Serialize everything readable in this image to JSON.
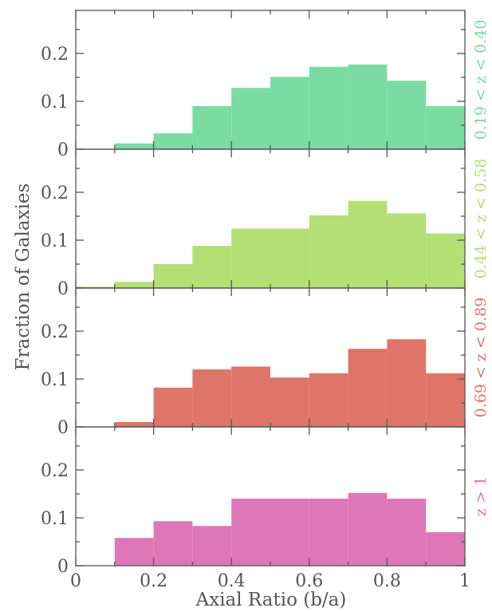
{
  "chart_data": {
    "type": "bar",
    "layout": "four vertically stacked histogram panels sharing the x axis",
    "xlabel": "Axial Ratio (b/a)",
    "ylabel": "Fraction of Galaxies",
    "xlim": [
      0,
      1
    ],
    "ylim": [
      0,
      0.29
    ],
    "x_ticks": [
      "0",
      "0.2",
      "0.4",
      "0.6",
      "0.8",
      "1"
    ],
    "y_ticks": [
      "0",
      "0.1",
      "0.2"
    ],
    "bin_edges": [
      0.0,
      0.1,
      0.2,
      0.3,
      0.4,
      0.5,
      0.6,
      0.7,
      0.8,
      0.9,
      1.0
    ],
    "grid": false,
    "panels": [
      {
        "label": "0.19 < z < 0.40",
        "color": "#7adba3",
        "values": [
          0.0,
          0.012,
          0.033,
          0.09,
          0.128,
          0.151,
          0.172,
          0.177,
          0.143,
          0.09
        ]
      },
      {
        "label": "0.44 < z < 0.58",
        "color": "#b4df74",
        "values": [
          0.003,
          0.013,
          0.05,
          0.088,
          0.124,
          0.124,
          0.152,
          0.182,
          0.156,
          0.114
        ]
      },
      {
        "label": "0.69 < z < 0.89",
        "color": "#df7569",
        "values": [
          0.0,
          0.01,
          0.082,
          0.12,
          0.126,
          0.103,
          0.112,
          0.163,
          0.183,
          0.112
        ]
      },
      {
        "label": "z > 1",
        "color": "#de77b7",
        "values": [
          0.0,
          0.058,
          0.093,
          0.083,
          0.14,
          0.14,
          0.14,
          0.152,
          0.14,
          0.07
        ]
      }
    ]
  }
}
